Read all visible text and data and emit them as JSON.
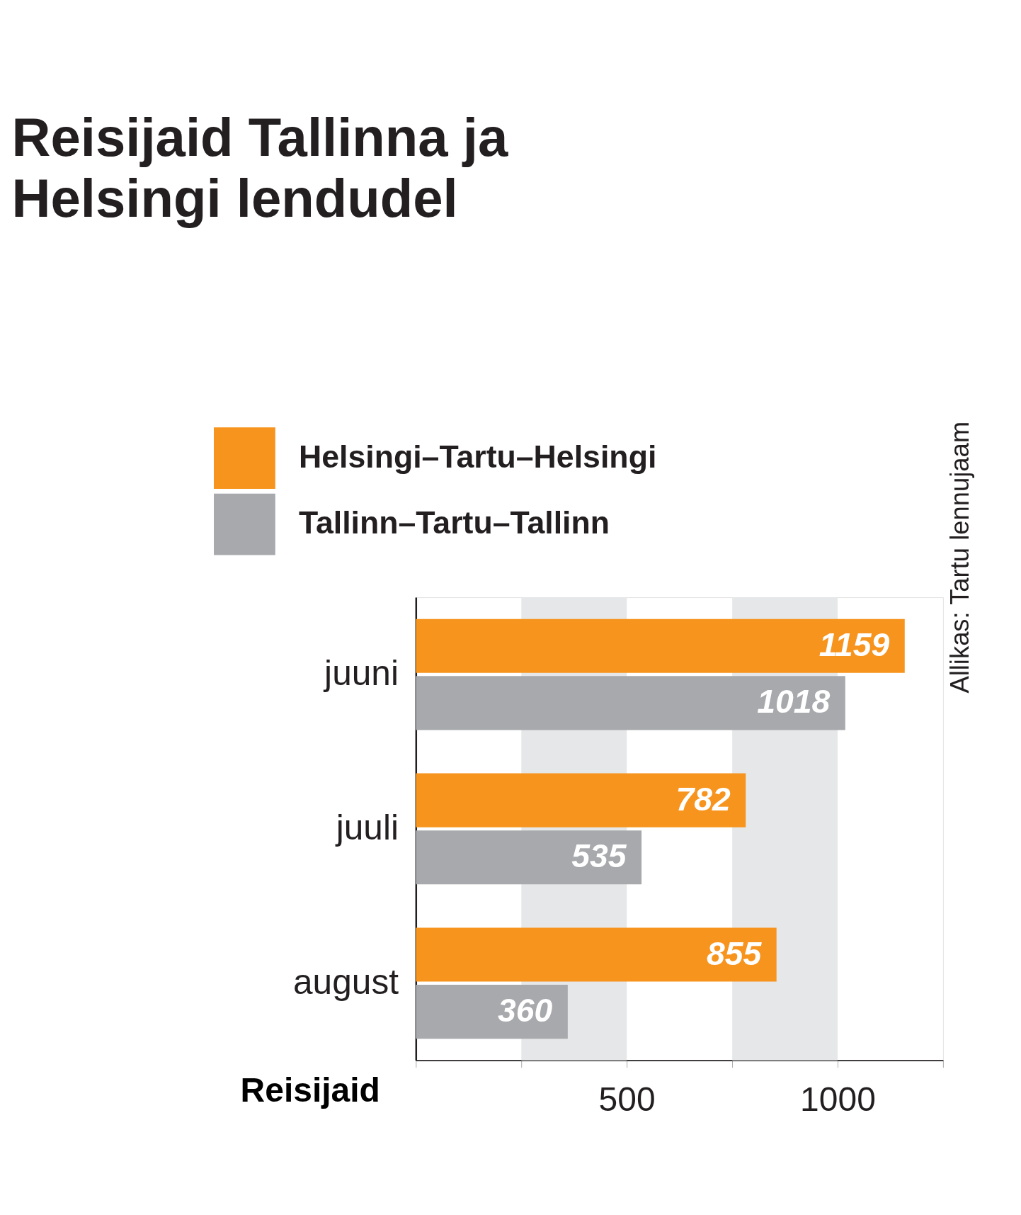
{
  "chart_data": {
    "type": "bar",
    "orientation": "horizontal",
    "title": "Reisijaid Tallinna ja Helsingi lendudel",
    "xlabel": "Reisijaid",
    "categories": [
      "juuni",
      "juuli",
      "august"
    ],
    "series": [
      {
        "name": "Helsingi–Tartu–Helsingi",
        "color": "#f7941d",
        "values": [
          1159,
          782,
          855
        ]
      },
      {
        "name": "Tallinn–Tartu–Tallinn",
        "color": "#a7a9ac",
        "values": [
          1018,
          535,
          360
        ]
      }
    ],
    "xlim": [
      0,
      1250
    ],
    "xticks": [
      {
        "value": 0,
        "label": null
      },
      {
        "value": 250,
        "label": null
      },
      500,
      {
        "value": 750,
        "label": null
      },
      1000,
      {
        "value": 1250,
        "label": null
      }
    ],
    "bands": [
      {
        "axis": "x",
        "from": 250,
        "to": 500,
        "color": "#e6e7e8"
      },
      {
        "axis": "x",
        "from": 750,
        "to": 1000,
        "color": "#e6e7e8"
      }
    ],
    "data_labels": true,
    "legend": "top",
    "grid": false,
    "annotations": [
      "Allikas: Tartu lennujaam"
    ]
  }
}
